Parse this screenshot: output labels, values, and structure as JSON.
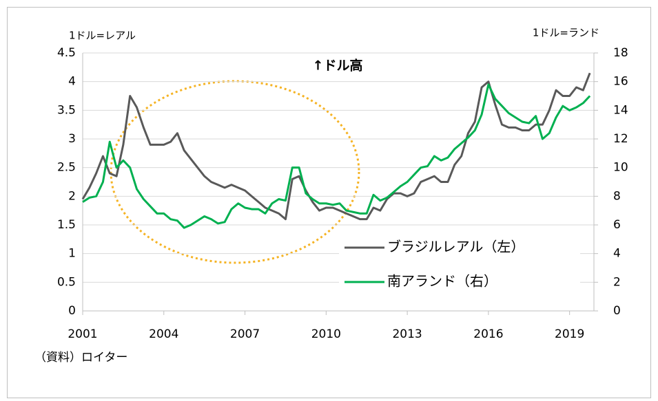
{
  "chart_data": {
    "type": "line",
    "y_label": "1ドル=レアル",
    "y2_label": "1ドル=ランド",
    "annotation": "↑ドル高",
    "source": "（資料）ロイター",
    "xlim": [
      2001,
      2019.9
    ],
    "xticks": [
      2001,
      2004,
      2007,
      2010,
      2013,
      2016,
      2019
    ],
    "ylim": [
      0,
      4.5
    ],
    "yticks": [
      0,
      0.5,
      1,
      1.5,
      2,
      2.5,
      3,
      3.5,
      4,
      4.5
    ],
    "y2lim": [
      0,
      18
    ],
    "y2ticks": [
      0,
      2,
      4,
      6,
      8,
      10,
      12,
      14,
      16,
      18
    ],
    "grid": true,
    "legend": "lower right",
    "x": [
      2001,
      2001.25,
      2001.5,
      2001.75,
      2002,
      2002.25,
      2002.5,
      2002.75,
      2003,
      2003.25,
      2003.5,
      2003.75,
      2004,
      2004.25,
      2004.5,
      2004.75,
      2005,
      2005.25,
      2005.5,
      2005.75,
      2006,
      2006.25,
      2006.5,
      2006.75,
      2007,
      2007.25,
      2007.5,
      2007.75,
      2008,
      2008.25,
      2008.5,
      2008.75,
      2009,
      2009.25,
      2009.5,
      2009.75,
      2010,
      2010.25,
      2010.5,
      2010.75,
      2011,
      2011.25,
      2011.5,
      2011.75,
      2012,
      2012.25,
      2012.5,
      2012.75,
      2013,
      2013.25,
      2013.5,
      2013.75,
      2014,
      2014.25,
      2014.5,
      2014.75,
      2015,
      2015.25,
      2015.5,
      2015.75,
      2016,
      2016.25,
      2016.5,
      2016.75,
      2017,
      2017.25,
      2017.5,
      2017.75,
      2018,
      2018.25,
      2018.5,
      2018.75,
      2019,
      2019.25,
      2019.5,
      2019.75
    ],
    "series": [
      {
        "name": "ブラジルレアル（左）",
        "color": "#595959",
        "axis": "y",
        "values": [
          1.95,
          2.15,
          2.4,
          2.7,
          2.4,
          2.35,
          2.9,
          3.75,
          3.55,
          3.2,
          2.9,
          2.9,
          2.9,
          2.95,
          3.1,
          2.8,
          2.65,
          2.5,
          2.35,
          2.25,
          2.2,
          2.15,
          2.2,
          2.15,
          2.1,
          2.0,
          1.9,
          1.8,
          1.75,
          1.7,
          1.6,
          2.3,
          2.35,
          2.1,
          1.9,
          1.75,
          1.8,
          1.8,
          1.75,
          1.7,
          1.65,
          1.6,
          1.6,
          1.8,
          1.75,
          1.95,
          2.05,
          2.05,
          2.0,
          2.05,
          2.25,
          2.3,
          2.35,
          2.25,
          2.25,
          2.55,
          2.7,
          3.1,
          3.3,
          3.9,
          4.0,
          3.6,
          3.25,
          3.2,
          3.2,
          3.15,
          3.15,
          3.25,
          3.25,
          3.5,
          3.85,
          3.75,
          3.75,
          3.9,
          3.85,
          4.15
        ]
      },
      {
        "name": "南アランド（右）",
        "color": "#00b050",
        "axis": "y2",
        "values": [
          7.6,
          7.9,
          8.0,
          9.0,
          11.8,
          10.0,
          10.5,
          10.0,
          8.5,
          7.8,
          7.3,
          6.8,
          6.8,
          6.4,
          6.3,
          5.8,
          6.0,
          6.3,
          6.6,
          6.4,
          6.1,
          6.2,
          7.1,
          7.5,
          7.2,
          7.1,
          7.1,
          6.8,
          7.5,
          7.8,
          7.7,
          10.0,
          10.0,
          8.2,
          7.8,
          7.5,
          7.5,
          7.4,
          7.5,
          7.0,
          6.9,
          6.8,
          6.8,
          8.1,
          7.7,
          7.9,
          8.3,
          8.7,
          9.0,
          9.5,
          10.0,
          10.1,
          10.8,
          10.5,
          10.7,
          11.3,
          11.7,
          12.1,
          12.6,
          13.7,
          15.8,
          14.8,
          14.3,
          13.8,
          13.5,
          13.2,
          13.1,
          13.6,
          12.0,
          12.4,
          13.5,
          14.3,
          14.0,
          14.2,
          14.5,
          15.0
        ]
      }
    ]
  }
}
